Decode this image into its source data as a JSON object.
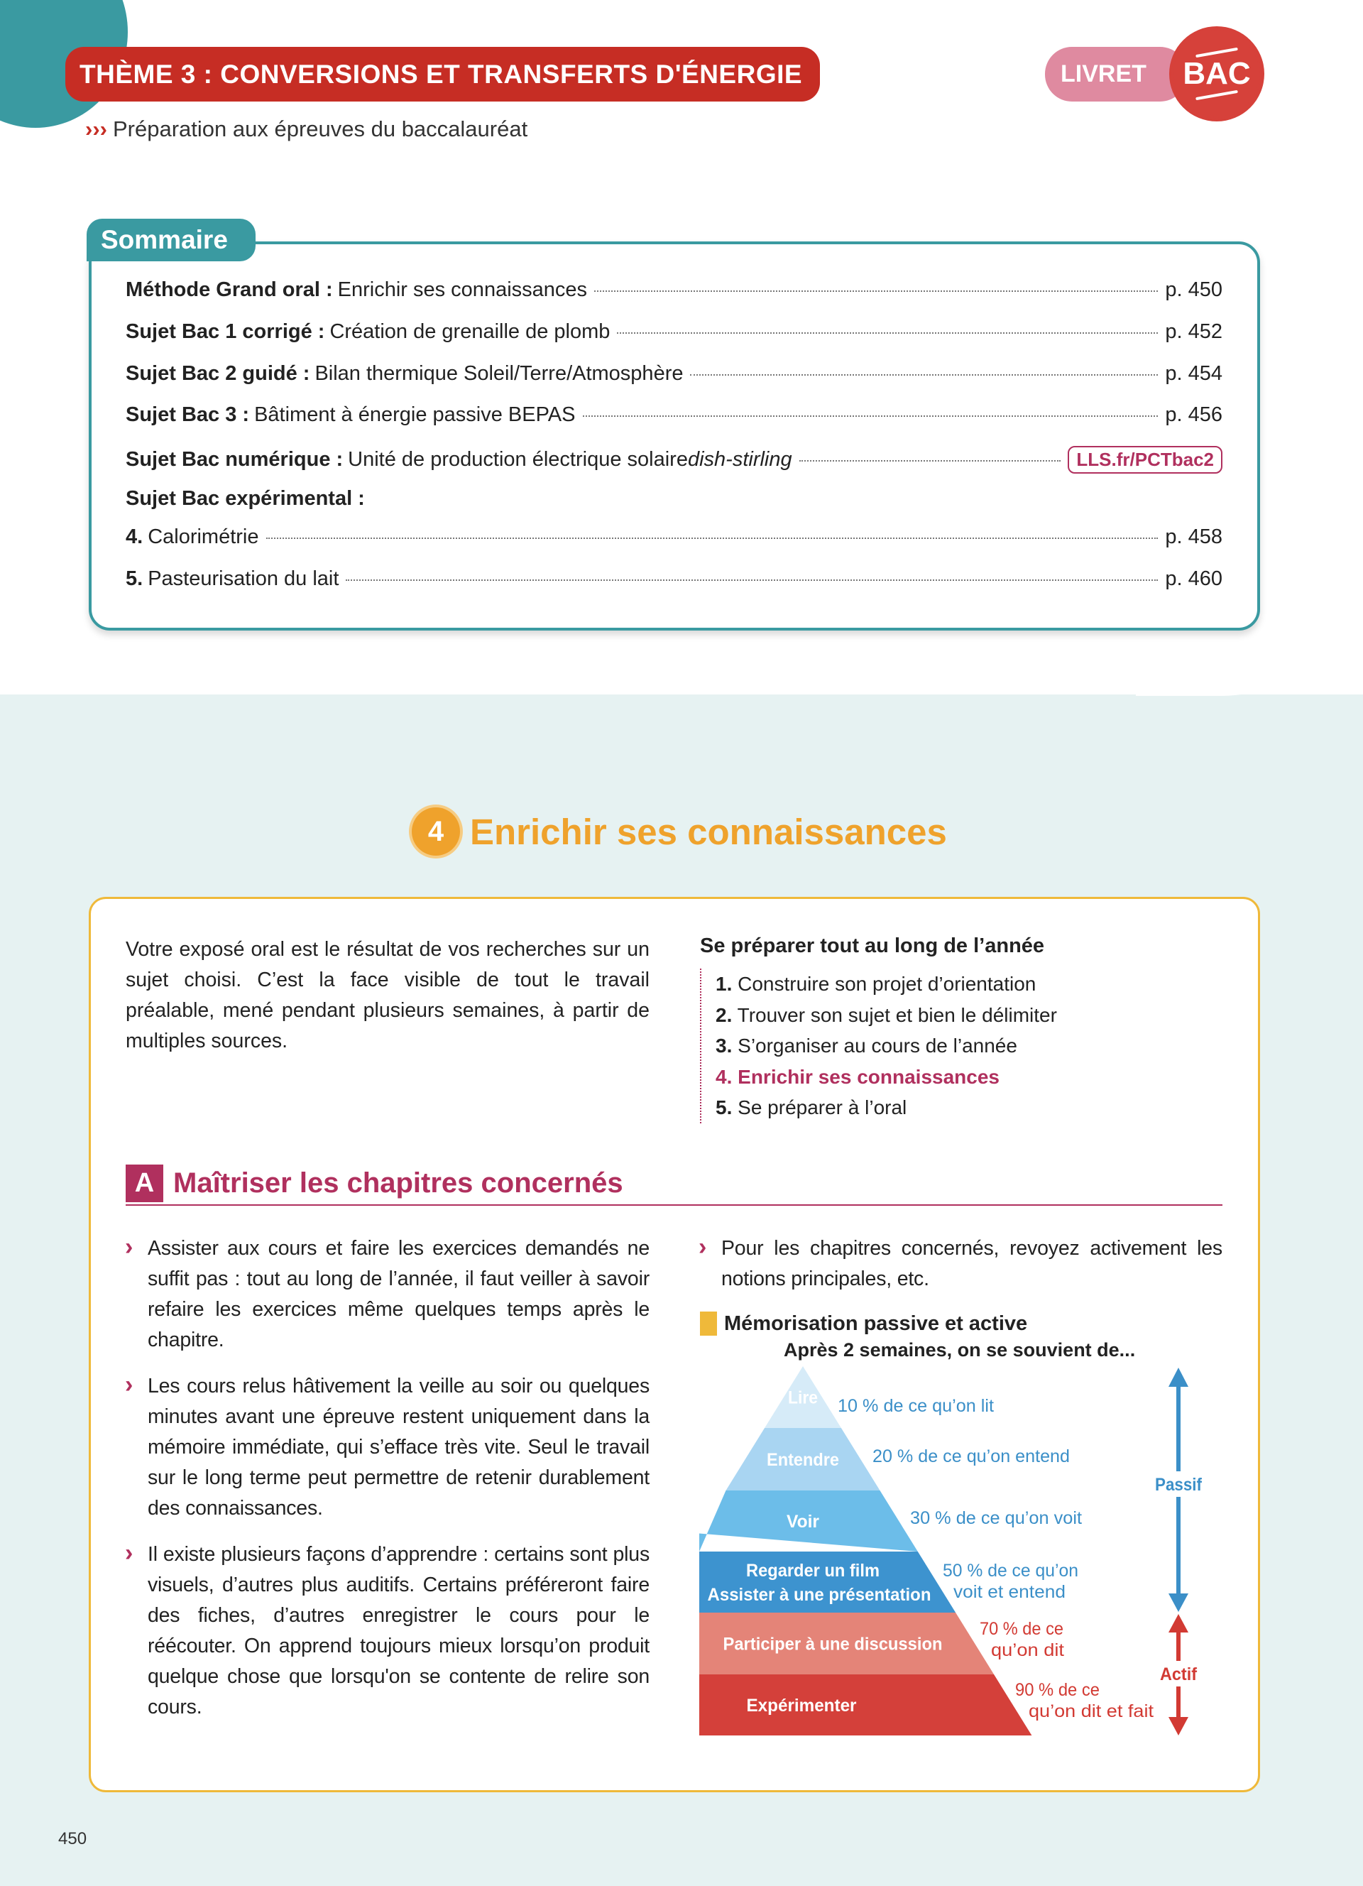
{
  "header": {
    "theme": "THÈME 3 : CONVERSIONS ET TRANSFERTS D'ÉNERGIE",
    "subtitle_prefix": "›››",
    "subtitle": "Préparation aux épreuves du baccalauréat",
    "livret": "LIVRET",
    "bac": "BAC"
  },
  "sommaire": {
    "title": "Sommaire",
    "rows": [
      {
        "bold": "Méthode Grand oral :",
        "text": "Enrichir ses connaissances",
        "page": "p. 450"
      },
      {
        "bold": "Sujet Bac 1 corrigé :",
        "text": "Création de grenaille de plomb",
        "page": "p. 452"
      },
      {
        "bold": "Sujet Bac 2 guidé :",
        "text": "Bilan thermique Soleil/Terre/Atmosphère",
        "page": "p. 454"
      },
      {
        "bold": "Sujet Bac 3 :",
        "text": "Bâtiment à énergie passive BEPAS",
        "page": "p. 456"
      },
      {
        "bold": "Sujet Bac numérique :",
        "text": "Unité de production électrique solaire ",
        "italic": "dish-stirling",
        "link": "LLS.fr/PCTbac2"
      },
      {
        "bold": "Sujet Bac expérimental :"
      },
      {
        "bold": "4.",
        "text": "Calorimétrie",
        "page": "p. 458"
      },
      {
        "bold": "5.",
        "text": "Pasteurisation du lait",
        "page": "p. 460"
      }
    ]
  },
  "method": {
    "number": "4",
    "title": "Enrichir ses connaissances",
    "intro": "Votre exposé oral est le résultat de vos recherches sur un sujet choisi. C’est la face visible de tout le travail préalable, mené pendant plusieurs semaines, à partir de multiples sources.",
    "prep_title": "Se préparer tout au long de l’année",
    "steps": [
      {
        "n": "1.",
        "t": "Construire son projet d’orientation"
      },
      {
        "n": "2.",
        "t": "Trouver son sujet et bien le délimiter"
      },
      {
        "n": "3.",
        "t": "S’organiser au cours de l’année"
      },
      {
        "n": "4.",
        "t": "Enrichir ses connaissances",
        "current": true
      },
      {
        "n": "5.",
        "t": "Se préparer à l’oral"
      }
    ]
  },
  "sectionA": {
    "letter": "A",
    "title": "Maîtriser les chapitres concernés",
    "bullets": [
      "Assister aux cours et faire les exercices demandés ne suffit pas : tout au long de l’année, il faut veiller à savoir refaire les exercices même quelques temps après le chapitre.",
      "Les cours relus hâtivement la veille au soir ou quelques minutes avant une épreuve restent uniquement dans la mémoire immédiate, qui s’efface très vite. Seul le travail sur le long terme peut permettre de retenir durablement des connaissances.",
      "Il existe plusieurs façons d’apprendre : certains sont plus visuels, d’autres plus auditifs. Certains préféreront faire des fiches, d’autres enregistrer le cours pour le réécouter. On apprend toujours mieux lorsqu’on produit quelque chose que lorsqu'on se contente de relire son cours.",
      "Pour les chapitres concernés, revoyez activement les notions principales, etc."
    ]
  },
  "pyramid": {
    "title": "Mémorisation passive et active",
    "subtitle": "Après 2 semaines, on se souvient de...",
    "levels": [
      {
        "label": [
          "Lire"
        ],
        "note": [
          "10 % de ce qu’on lit"
        ],
        "percent": 10,
        "color": "#d6ebf8",
        "mode": "passif"
      },
      {
        "label": [
          "Entendre"
        ],
        "note": [
          "20 % de ce qu’on entend"
        ],
        "percent": 20,
        "color": "#a9d5f2",
        "mode": "passif"
      },
      {
        "label": [
          "Voir"
        ],
        "note": [
          "30 % de ce qu’on voit"
        ],
        "percent": 30,
        "color": "#6cbde9",
        "mode": "passif"
      },
      {
        "label": [
          "Regarder un film",
          "Assister à une présentation"
        ],
        "note": [
          "50 % de ce qu’on",
          "voit et entend"
        ],
        "percent": 50,
        "color": "#3d93cf",
        "mode": "passif"
      },
      {
        "label": [
          "Participer à une discussion"
        ],
        "note": [
          "70 % de ce",
          "qu’on dit"
        ],
        "percent": 70,
        "color": "#e48478",
        "mode": "actif"
      },
      {
        "label": [
          "Expérimenter"
        ],
        "note": [
          "90 % de ce",
          "qu’on dit et fait"
        ],
        "percent": 90,
        "color": "#d4403a",
        "mode": "actif"
      }
    ],
    "passif_label": "Passif",
    "actif_label": "Actif",
    "passif_color": "#3b8fc8",
    "actif_color": "#d23a33"
  },
  "page_number": "450"
}
